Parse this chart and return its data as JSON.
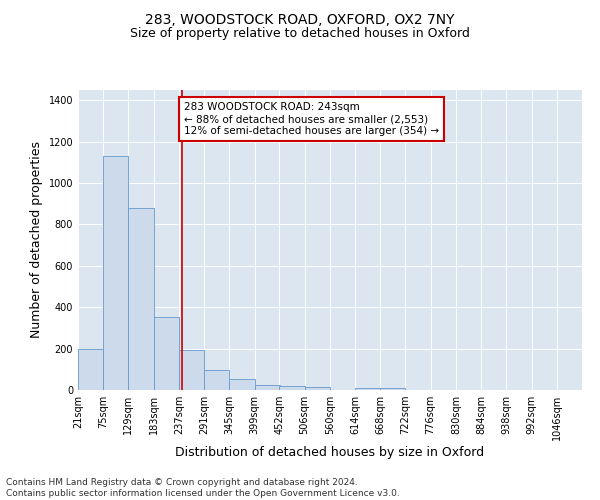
{
  "title1": "283, WOODSTOCK ROAD, OXFORD, OX2 7NY",
  "title2": "Size of property relative to detached houses in Oxford",
  "xlabel": "Distribution of detached houses by size in Oxford",
  "ylabel": "Number of detached properties",
  "footnote1": "Contains HM Land Registry data © Crown copyright and database right 2024.",
  "footnote2": "Contains public sector information licensed under the Open Government Licence v3.0.",
  "bar_edges": [
    21,
    75,
    129,
    183,
    237,
    291,
    345,
    399,
    452,
    506,
    560,
    614,
    668,
    722,
    776,
    830,
    884,
    938,
    992,
    1046,
    1100
  ],
  "bar_heights": [
    197,
    1130,
    878,
    352,
    193,
    98,
    52,
    22,
    20,
    15,
    0,
    12,
    12,
    0,
    0,
    0,
    0,
    0,
    0,
    0
  ],
  "bar_color": "#cddaeb",
  "bar_edge_color": "#6699cc",
  "property_size": 243,
  "vline_color": "#cc0000",
  "annotation_text": "283 WOODSTOCK ROAD: 243sqm\n← 88% of detached houses are smaller (2,553)\n12% of semi-detached houses are larger (354) →",
  "annotation_box_color": "white",
  "annotation_box_edge_color": "#cc0000",
  "ylim": [
    0,
    1450
  ],
  "yticks": [
    0,
    200,
    400,
    600,
    800,
    1000,
    1200,
    1400
  ],
  "background_color": "#dce6f0",
  "title1_fontsize": 10,
  "title2_fontsize": 9,
  "xlabel_fontsize": 9,
  "ylabel_fontsize": 9,
  "tick_fontsize": 7,
  "annotation_fontsize": 7.5,
  "footnote_fontsize": 6.5
}
